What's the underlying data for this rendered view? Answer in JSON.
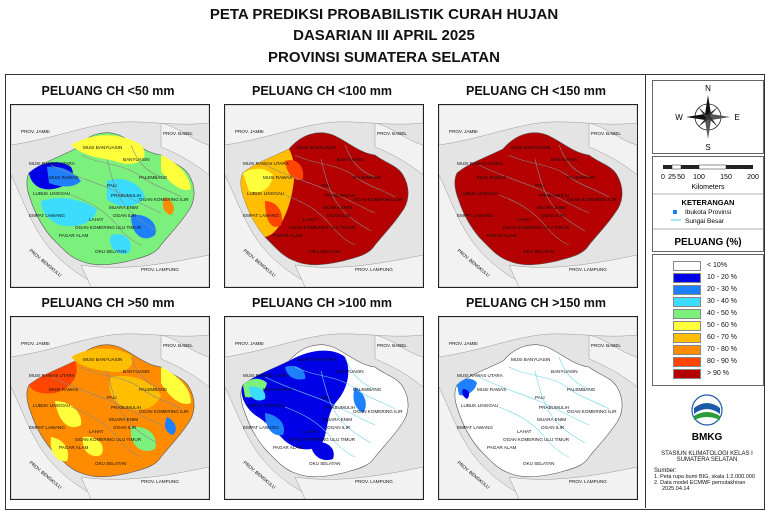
{
  "title": {
    "line1": "PETA PREDIKSI PROBABILISTIK CURAH HUJAN",
    "line2": "DASARIAN III APRIL 2025",
    "line3": "PROVINSI SUMATERA SELATAN"
  },
  "panels": [
    {
      "title": "PELUANG CH <50 mm"
    },
    {
      "title": "PELUANG CH <100 mm"
    },
    {
      "title": "PELUANG CH <150 mm"
    },
    {
      "title": "PELUANG CH >50 mm"
    },
    {
      "title": "PELUANG CH >100 mm"
    },
    {
      "title": "PELUANG CH >150 mm"
    }
  ],
  "map_labels": {
    "prov_jambi": "PROV. JAMBI",
    "prov_babel": "PROV. BABEL",
    "prov_bengkulu": "PROV. BENGKULU",
    "prov_lampung": "PROV. LAMPUNG",
    "musi_banyuasin": "MUSI BANYUASIN",
    "banyuasin": "BANYUASIN",
    "musi_rawas_utara": "MUSI RAWAS UTARA",
    "musi_rawas": "MUSI RAWAS",
    "palembang": "PALEMBANG",
    "pali": "PALI",
    "lubuk_linggau": "LUBUK LINGGAU",
    "prabumulih": "PRABUMULIH",
    "ogan_komering_ilir": "OGAN KOMERING ILIR",
    "empat_lawang": "EMPAT LAWANG",
    "muara_enim": "MUARA ENIM",
    "lahat": "LAHAT",
    "ogan_ilir": "OGAN ILIR",
    "okut": "OGAN KOMERING ULU TIMUR",
    "pagar_alam": "PAGAR ALAM",
    "oku_selatan": "OKU SELATAN"
  },
  "compass": {
    "n": "N",
    "s": "S",
    "e": "E",
    "w": "W"
  },
  "scale": {
    "ticks": [
      "0",
      "25",
      "50",
      "100",
      "150",
      "200"
    ],
    "unit": "Kilometers"
  },
  "keterangan": {
    "title": "KETERANGAN",
    "ibukota": "Ibukota Provinsi",
    "sungai": "Sungai Besar"
  },
  "legend": {
    "title": "PELUANG (%)",
    "items": [
      {
        "label": "< 10%",
        "color": "#ffffff"
      },
      {
        "label": "10 - 20 %",
        "color": "#0000e6"
      },
      {
        "label": "20 - 30 %",
        "color": "#1e7fff"
      },
      {
        "label": "30 - 40 %",
        "color": "#3cdcff"
      },
      {
        "label": "40 - 50 %",
        "color": "#7cf07c"
      },
      {
        "label": "50 - 60 %",
        "color": "#ffff3c"
      },
      {
        "label": "60 - 70 %",
        "color": "#ffbf00"
      },
      {
        "label": "70 - 80 %",
        "color": "#ff8c00"
      },
      {
        "label": "80 - 90 %",
        "color": "#ff4500"
      },
      {
        "label": "> 90 %",
        "color": "#b40000"
      }
    ]
  },
  "logo": {
    "name": "BMKG",
    "station1": "STASIUN KLIMATOLOGI KELAS I",
    "station2": "SUMATERA SELATAN"
  },
  "sumber": {
    "title": "Sumber:",
    "l1": "1. Peta rupa bumi BIG, skala 1:2.000.000",
    "l2": "2. Data model ECMWF pemutakhiran",
    "l3": "2025.04.14"
  }
}
